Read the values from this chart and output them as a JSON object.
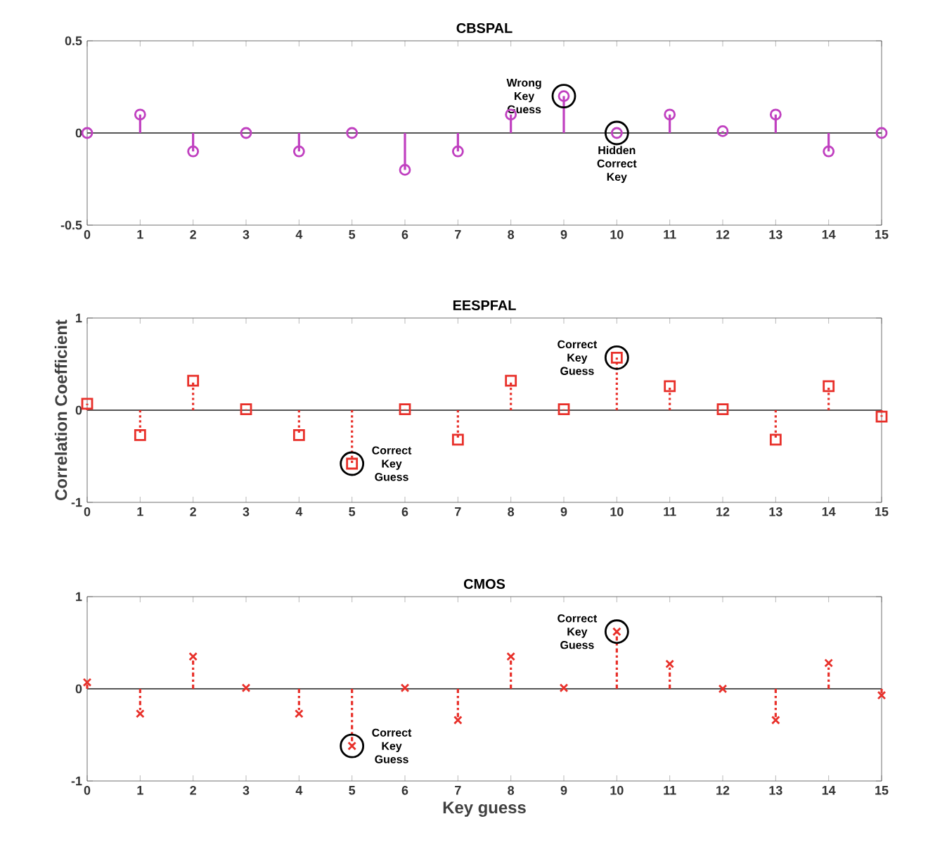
{
  "chart_data": [
    {
      "type": "lollipop",
      "title": "CBSPAL",
      "x": [
        0,
        1,
        2,
        3,
        4,
        5,
        6,
        7,
        8,
        9,
        10,
        11,
        12,
        13,
        14,
        15
      ],
      "values": [
        0,
        0.1,
        -0.1,
        0,
        -0.1,
        0,
        -0.2,
        -0.1,
        0.1,
        0.2,
        0,
        0.1,
        0.01,
        0.1,
        -0.1,
        0
      ],
      "color": "#c040c0",
      "marker": "circle",
      "line_style": "solid",
      "xlim": [
        0,
        15
      ],
      "xticks": [
        0,
        1,
        2,
        3,
        4,
        5,
        6,
        7,
        8,
        9,
        10,
        11,
        12,
        13,
        14,
        15
      ],
      "ylim": [
        -0.5,
        0.5
      ],
      "yticks": [
        -0.5,
        0,
        0.5
      ],
      "ref_lines": [
        {
          "axis": "y",
          "value": 0,
          "color": "#555555"
        }
      ],
      "annotations": [
        {
          "text": "Wrong Key Guess",
          "x": 9,
          "y": 0.2
        },
        {
          "text": "Hidden Correct Key",
          "x": 10,
          "y": 0
        }
      ]
    },
    {
      "type": "lollipop",
      "title": "EESPFAL",
      "ylabel": "Correlation Coefficient",
      "x": [
        0,
        1,
        2,
        3,
        4,
        5,
        6,
        7,
        8,
        9,
        10,
        11,
        12,
        13,
        14,
        15
      ],
      "values": [
        0.07,
        -0.27,
        0.32,
        0.01,
        -0.27,
        -0.58,
        0.01,
        -0.32,
        0.32,
        0.01,
        0.57,
        0.26,
        0.01,
        -0.32,
        0.26,
        -0.07
      ],
      "color": "#e8302a",
      "marker": "square",
      "line_style": "dotted",
      "xlim": [
        0,
        15
      ],
      "xticks": [
        0,
        1,
        2,
        3,
        4,
        5,
        6,
        7,
        8,
        9,
        10,
        11,
        12,
        13,
        14,
        15
      ],
      "ylim": [
        -1,
        1
      ],
      "yticks": [
        -1,
        0,
        1
      ],
      "ref_lines": [
        {
          "axis": "y",
          "value": 0,
          "color": "#555555"
        }
      ],
      "annotations": [
        {
          "text": "Correct Key Guess",
          "x": 10,
          "y": 0.57
        },
        {
          "text": "Correct Key Guess",
          "x": 5,
          "y": -0.58
        }
      ]
    },
    {
      "type": "lollipop",
      "title": "CMOS",
      "xlabel": "Key guess",
      "x": [
        0,
        1,
        2,
        3,
        4,
        5,
        6,
        7,
        8,
        9,
        10,
        11,
        12,
        13,
        14,
        15
      ],
      "values": [
        0.07,
        -0.27,
        0.35,
        0.01,
        -0.27,
        -0.62,
        0.01,
        -0.34,
        0.35,
        0.01,
        0.62,
        0.27,
        0,
        -0.34,
        0.28,
        -0.07
      ],
      "color": "#e8302a",
      "marker": "cross",
      "line_style": "dashed",
      "xlim": [
        0,
        15
      ],
      "xticks": [
        0,
        1,
        2,
        3,
        4,
        5,
        6,
        7,
        8,
        9,
        10,
        11,
        12,
        13,
        14,
        15
      ],
      "ylim": [
        -1,
        1
      ],
      "yticks": [
        -1,
        0,
        1
      ],
      "ref_lines": [
        {
          "axis": "y",
          "value": 0,
          "color": "#555555"
        }
      ],
      "annotations": [
        {
          "text": "Correct Key Guess",
          "x": 10,
          "y": 0.62
        },
        {
          "text": "Correct Key Guess",
          "x": 5,
          "y": -0.62
        }
      ]
    }
  ]
}
